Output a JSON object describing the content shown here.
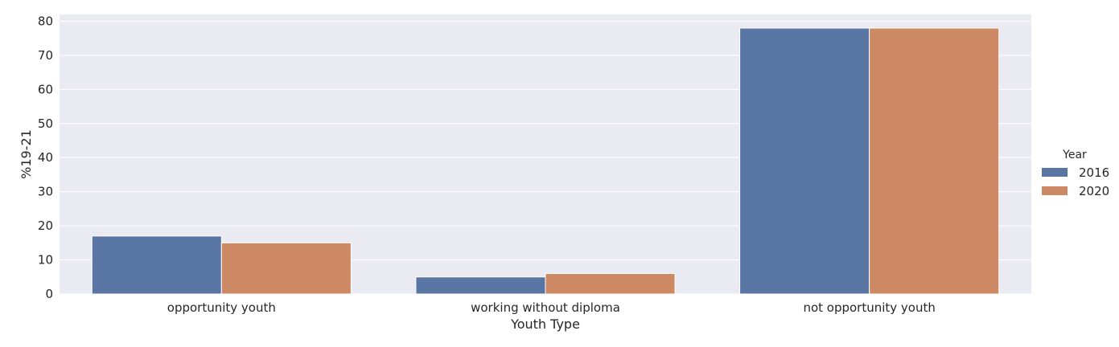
{
  "chart_data": {
    "type": "bar",
    "categories": [
      "opportunity youth",
      "working without diploma",
      "not opportunity youth"
    ],
    "series": [
      {
        "name": "2016",
        "values": [
          17,
          5,
          78
        ],
        "color": "#5975a4"
      },
      {
        "name": "2020",
        "values": [
          15,
          6,
          78
        ],
        "color": "#cc8963"
      }
    ],
    "xlabel": "Youth Type",
    "ylabel": "%19-21",
    "ylim": [
      0,
      82
    ],
    "yticks": [
      0,
      10,
      20,
      30,
      40,
      50,
      60,
      70,
      80
    ],
    "grid": true,
    "legend": {
      "title": "Year",
      "placement": "right"
    },
    "plot_background": "#eaeaf2",
    "grid_color": "#ffffff"
  }
}
